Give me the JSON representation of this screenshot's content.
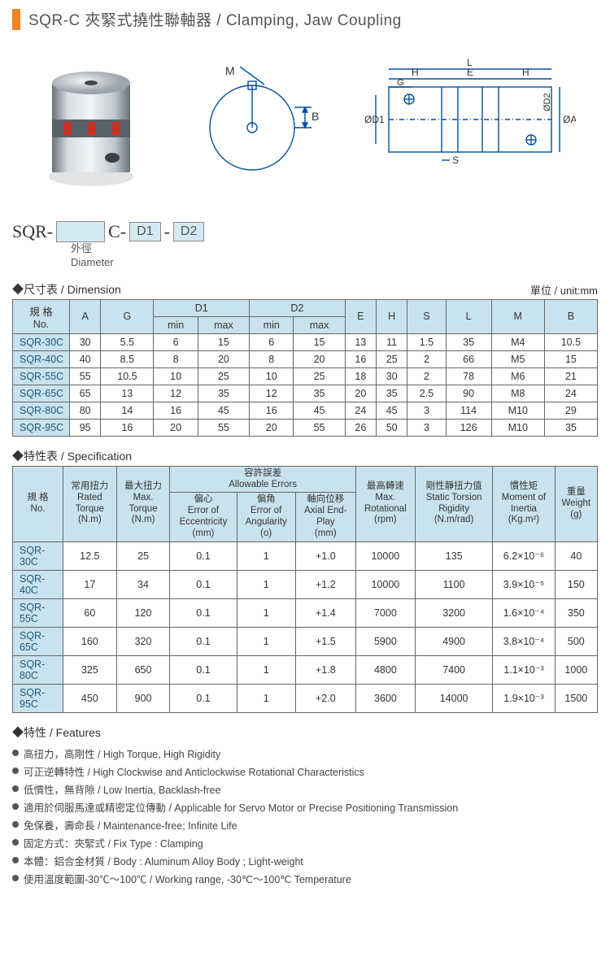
{
  "title": "SQR-C 夾緊式撓性聯軸器 / Clamping, Jaw Coupling",
  "partcode": {
    "prefix": "SQR-",
    "mid": "C-",
    "d1": "D1",
    "dash": "-",
    "d2": "D2",
    "sub1": "外徑",
    "sub2": "Diameter"
  },
  "dim": {
    "title": "◆尺寸表 / Dimension",
    "unit": "單位 / unit:mm",
    "head": {
      "no": "規 格\nNo.",
      "A": "A",
      "G": "G",
      "D1": "D1",
      "D2": "D2",
      "min": "min",
      "max": "max",
      "E": "E",
      "H": "H",
      "S": "S",
      "L": "L",
      "M": "M",
      "B": "B"
    },
    "rows": [
      {
        "no": "SQR-30C",
        "A": "30",
        "G": "5.5",
        "D1min": "6",
        "D1max": "15",
        "D2min": "6",
        "D2max": "15",
        "E": "13",
        "H": "11",
        "S": "1.5",
        "L": "35",
        "M": "M4",
        "B": "10.5"
      },
      {
        "no": "SQR-40C",
        "A": "40",
        "G": "8.5",
        "D1min": "8",
        "D1max": "20",
        "D2min": "8",
        "D2max": "20",
        "E": "16",
        "H": "25",
        "S": "2",
        "L": "66",
        "M": "M5",
        "B": "15"
      },
      {
        "no": "SQR-55C",
        "A": "55",
        "G": "10.5",
        "D1min": "10",
        "D1max": "25",
        "D2min": "10",
        "D2max": "25",
        "E": "18",
        "H": "30",
        "S": "2",
        "L": "78",
        "M": "M6",
        "B": "21"
      },
      {
        "no": "SQR-65C",
        "A": "65",
        "G": "13",
        "D1min": "12",
        "D1max": "35",
        "D2min": "12",
        "D2max": "35",
        "E": "20",
        "H": "35",
        "S": "2.5",
        "L": "90",
        "M": "M8",
        "B": "24"
      },
      {
        "no": "SQR-80C",
        "A": "80",
        "G": "14",
        "D1min": "16",
        "D1max": "45",
        "D2min": "16",
        "D2max": "45",
        "E": "24",
        "H": "45",
        "S": "3",
        "L": "114",
        "M": "M10",
        "B": "29"
      },
      {
        "no": "SQR-95C",
        "A": "95",
        "G": "16",
        "D1min": "20",
        "D1max": "55",
        "D2min": "20",
        "D2max": "55",
        "E": "26",
        "H": "50",
        "S": "3",
        "L": "126",
        "M": "M10",
        "B": "35"
      }
    ]
  },
  "spec": {
    "title": "◆特性表 / Specification",
    "head": {
      "no": "規 格\nNo.",
      "rated": "常用扭力\nRated\nTorque\n(N.m)",
      "max": "最大扭力\nMax.\nTorque\n(N.m)",
      "allow": "容許誤差\nAllowable Errors",
      "ecc": "偏心\nError of\nEccentricity\n(mm)",
      "ang": "偏角\nError of\nAngularity\n(o)",
      "axial": "軸向位移\nAxial End-\nPlay\n(mm)",
      "rpm": "最高轉速\nMax.\nRotational\n(rpm)",
      "rigidity": "剛性靜扭力值\nStatic Torsion\nRigidity\n(N.m/rad)",
      "inertia": "慣性矩\nMoment of\nInertia\n(Kg.m²)",
      "weight": "重量\nWeight\n(g)"
    },
    "rows": [
      {
        "no": "SQR-30C",
        "rated": "12.5",
        "max": "25",
        "ecc": "0.1",
        "ang": "1",
        "axial": "+1.0",
        "rpm": "10000",
        "rig": "135",
        "inertia": "6.2×10⁻⁶",
        "wt": "40"
      },
      {
        "no": "SQR-40C",
        "rated": "17",
        "max": "34",
        "ecc": "0.1",
        "ang": "1",
        "axial": "+1.2",
        "rpm": "10000",
        "rig": "1100",
        "inertia": "3.9×10⁻⁵",
        "wt": "150"
      },
      {
        "no": "SQR-55C",
        "rated": "60",
        "max": "120",
        "ecc": "0.1",
        "ang": "1",
        "axial": "+1.4",
        "rpm": "7000",
        "rig": "3200",
        "inertia": "1.6×10⁻⁴",
        "wt": "350"
      },
      {
        "no": "SQR-65C",
        "rated": "160",
        "max": "320",
        "ecc": "0.1",
        "ang": "1",
        "axial": "+1.5",
        "rpm": "5900",
        "rig": "4900",
        "inertia": "3.8×10⁻⁴",
        "wt": "500"
      },
      {
        "no": "SQR-80C",
        "rated": "325",
        "max": "650",
        "ecc": "0.1",
        "ang": "1",
        "axial": "+1.8",
        "rpm": "4800",
        "rig": "7400",
        "inertia": "1.1×10⁻³",
        "wt": "1000"
      },
      {
        "no": "SQR-95C",
        "rated": "450",
        "max": "900",
        "ecc": "0.1",
        "ang": "1",
        "axial": "+2.0",
        "rpm": "3600",
        "rig": "14000",
        "inertia": "1.9×10⁻³",
        "wt": "1500"
      }
    ]
  },
  "features": {
    "title": "◆特性 / Features",
    "items": [
      "高扭力，高剛性 / High Torque, High Rigidity",
      "可正逆轉特性 / High Clockwise and Anticlockwise Rotational Characteristics",
      "低慣性，無背隙 / Low Inertia, Backlash-free",
      "適用於伺服馬達或精密定位傳動 / Applicable for Servo Motor or Precise Positioning Transmission",
      "免保養，壽命長 / Maintenance-free; Infinite Life",
      "固定方式：夾緊式 / Fix Type : Clamping",
      "本體：鋁合金材質 / Body : Aluminum Alloy Body ; Light-weight",
      "使用溫度範圍-30℃～100℃ / Working range, -30℃～100℃ Temperature"
    ]
  },
  "colors": {
    "accent": "#f58220",
    "header_bg": "#c9e3ee",
    "border": "#666",
    "link": "#1e5a7a"
  }
}
